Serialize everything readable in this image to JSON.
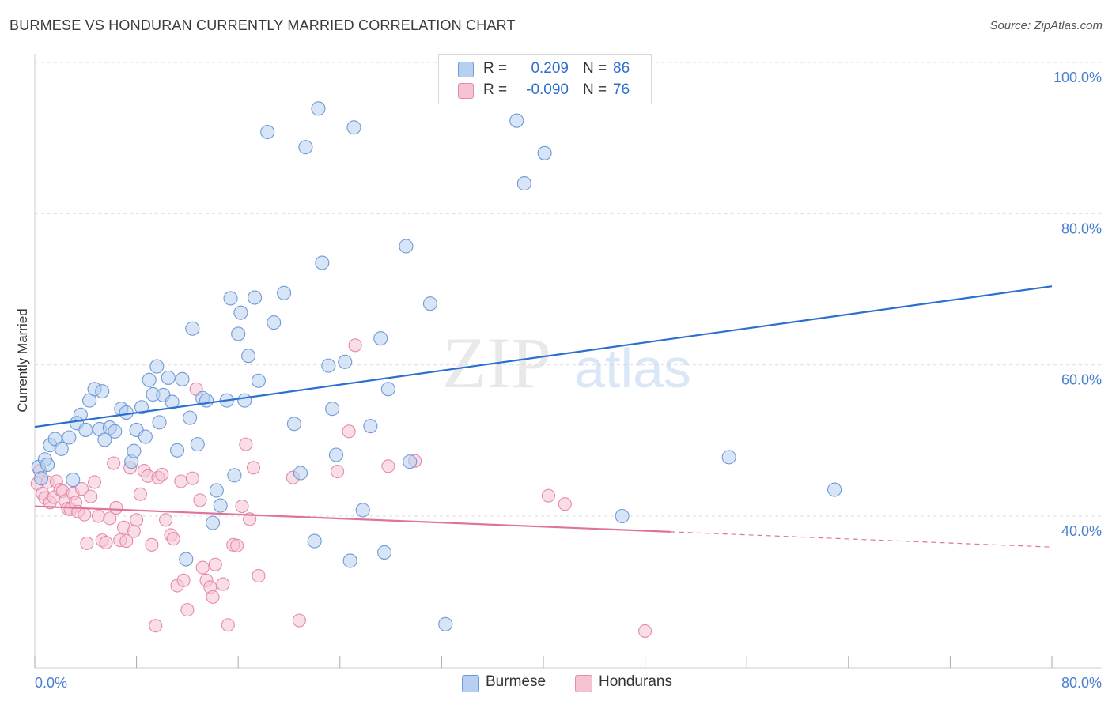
{
  "header": {
    "title": "BURMESE VS HONDURAN CURRENTLY MARRIED CORRELATION CHART",
    "source": "Source: ZipAtlas.com"
  },
  "legend_top": {
    "rows": [
      {
        "r_label": "R =",
        "r_value": "0.209",
        "n_label": "N =",
        "n_value": "86"
      },
      {
        "r_label": "R =",
        "r_value": "-0.090",
        "n_label": "N =",
        "n_value": "76"
      }
    ]
  },
  "legend_bottom": {
    "items": [
      "Burmese",
      "Hondurans"
    ]
  },
  "watermark": {
    "zip": "ZIP",
    "atlas": "atlas"
  },
  "colors": {
    "burmese_fill": "#b7cff0",
    "burmese_stroke": "#6f9ad8",
    "burmese_line": "#2b6fd1",
    "hondurans_fill": "#f6c3d3",
    "hondurans_stroke": "#e58aa8",
    "hondurans_line": "#e0739a",
    "tick_text": "#4a7fcf",
    "grid": "#dddddd"
  },
  "chart_data": {
    "type": "scatter",
    "title": "BURMESE VS HONDURAN CURRENTLY MARRIED CORRELATION CHART",
    "xlabel": "",
    "ylabel": "Currently Married",
    "xlim": [
      0,
      80
    ],
    "ylim": [
      22,
      104
    ],
    "x_tick_labels": [
      "0.0%",
      "80.0%"
    ],
    "y_ticks": [
      40,
      60,
      80,
      100
    ],
    "y_tick_labels": [
      "40.0%",
      "60.0%",
      "80.0%",
      "100.0%"
    ],
    "grid": true,
    "legend": "top-center",
    "series": [
      {
        "name": "Burmese",
        "R": 0.209,
        "N": 86,
        "trend": {
          "x": [
            0,
            80
          ],
          "y": [
            51.8,
            70.4
          ],
          "dashed_from_x": null
        },
        "points": [
          [
            0.3,
            46.5
          ],
          [
            0.5,
            45.0
          ],
          [
            0.8,
            47.5
          ],
          [
            1.0,
            46.8
          ],
          [
            1.2,
            49.4
          ],
          [
            1.6,
            50.2
          ],
          [
            2.1,
            48.9
          ],
          [
            2.7,
            50.4
          ],
          [
            3.0,
            44.8
          ],
          [
            3.6,
            53.4
          ],
          [
            3.3,
            52.3
          ],
          [
            4.0,
            51.4
          ],
          [
            4.3,
            55.3
          ],
          [
            4.7,
            56.8
          ],
          [
            5.1,
            51.5
          ],
          [
            5.3,
            56.5
          ],
          [
            5.5,
            50.1
          ],
          [
            5.9,
            51.7
          ],
          [
            6.3,
            51.2
          ],
          [
            6.8,
            54.2
          ],
          [
            7.2,
            53.7
          ],
          [
            7.6,
            47.2
          ],
          [
            7.8,
            48.6
          ],
          [
            8.0,
            51.4
          ],
          [
            8.4,
            54.4
          ],
          [
            8.7,
            50.5
          ],
          [
            9.0,
            58.0
          ],
          [
            9.3,
            56.1
          ],
          [
            9.6,
            59.8
          ],
          [
            9.8,
            52.4
          ],
          [
            10.1,
            56.0
          ],
          [
            10.5,
            58.3
          ],
          [
            10.8,
            55.1
          ],
          [
            11.2,
            48.7
          ],
          [
            11.6,
            58.1
          ],
          [
            11.9,
            34.3
          ],
          [
            12.2,
            53.0
          ],
          [
            12.4,
            64.8
          ],
          [
            12.8,
            49.5
          ],
          [
            13.2,
            55.6
          ],
          [
            13.5,
            55.3
          ],
          [
            14.0,
            39.1
          ],
          [
            14.3,
            43.4
          ],
          [
            14.6,
            41.4
          ],
          [
            15.1,
            55.3
          ],
          [
            15.4,
            68.8
          ],
          [
            15.7,
            45.4
          ],
          [
            16.0,
            64.1
          ],
          [
            16.2,
            66.9
          ],
          [
            16.5,
            55.3
          ],
          [
            16.8,
            61.2
          ],
          [
            17.3,
            68.9
          ],
          [
            17.6,
            57.9
          ],
          [
            18.3,
            90.8
          ],
          [
            18.8,
            65.6
          ],
          [
            19.6,
            69.5
          ],
          [
            20.4,
            52.2
          ],
          [
            20.9,
            45.7
          ],
          [
            21.3,
            88.8
          ],
          [
            22.0,
            36.7
          ],
          [
            22.6,
            73.5
          ],
          [
            22.3,
            93.9
          ],
          [
            23.1,
            59.9
          ],
          [
            23.4,
            54.2
          ],
          [
            23.7,
            48.1
          ],
          [
            24.4,
            60.4
          ],
          [
            24.8,
            34.1
          ],
          [
            25.1,
            91.4
          ],
          [
            25.8,
            40.8
          ],
          [
            26.4,
            51.9
          ],
          [
            27.2,
            63.5
          ],
          [
            27.5,
            35.2
          ],
          [
            27.8,
            56.8
          ],
          [
            29.2,
            75.7
          ],
          [
            29.5,
            47.2
          ],
          [
            31.1,
            68.1
          ],
          [
            32.3,
            25.7
          ],
          [
            37.9,
            92.3
          ],
          [
            38.5,
            84.0
          ],
          [
            40.1,
            88.0
          ],
          [
            46.2,
            40.0
          ],
          [
            54.6,
            47.8
          ],
          [
            62.9,
            43.5
          ]
        ]
      },
      {
        "name": "Hondurans",
        "R": -0.09,
        "N": 76,
        "trend": {
          "x": [
            0,
            80
          ],
          "y": [
            41.3,
            35.9
          ],
          "dashed_from_x": 50.0
        },
        "points": [
          [
            0.2,
            44.3
          ],
          [
            0.4,
            46.0
          ],
          [
            0.6,
            43.0
          ],
          [
            0.8,
            42.4
          ],
          [
            1.0,
            44.5
          ],
          [
            1.2,
            41.8
          ],
          [
            1.5,
            42.5
          ],
          [
            1.7,
            44.6
          ],
          [
            2.0,
            43.5
          ],
          [
            2.2,
            43.3
          ],
          [
            2.4,
            42.0
          ],
          [
            2.6,
            41.0
          ],
          [
            2.8,
            40.9
          ],
          [
            3.0,
            43.0
          ],
          [
            3.2,
            41.8
          ],
          [
            3.4,
            40.6
          ],
          [
            3.7,
            43.6
          ],
          [
            3.9,
            40.2
          ],
          [
            4.1,
            36.4
          ],
          [
            4.4,
            42.6
          ],
          [
            4.7,
            44.5
          ],
          [
            5.0,
            40.0
          ],
          [
            5.3,
            36.8
          ],
          [
            5.6,
            36.5
          ],
          [
            5.9,
            39.7
          ],
          [
            6.2,
            47.0
          ],
          [
            6.4,
            41.1
          ],
          [
            6.7,
            36.8
          ],
          [
            7.0,
            38.5
          ],
          [
            7.2,
            36.7
          ],
          [
            7.5,
            46.4
          ],
          [
            7.8,
            38.0
          ],
          [
            8.0,
            39.5
          ],
          [
            8.3,
            42.9
          ],
          [
            8.6,
            46.0
          ],
          [
            8.9,
            45.3
          ],
          [
            9.2,
            36.2
          ],
          [
            9.5,
            25.5
          ],
          [
            9.7,
            45.1
          ],
          [
            10.0,
            45.5
          ],
          [
            10.3,
            39.5
          ],
          [
            10.7,
            37.5
          ],
          [
            10.9,
            37.0
          ],
          [
            11.2,
            30.8
          ],
          [
            11.5,
            44.6
          ],
          [
            11.7,
            31.5
          ],
          [
            12.0,
            27.6
          ],
          [
            12.4,
            45.0
          ],
          [
            12.7,
            56.8
          ],
          [
            13.0,
            42.1
          ],
          [
            13.2,
            33.2
          ],
          [
            13.5,
            31.5
          ],
          [
            13.8,
            30.6
          ],
          [
            14.0,
            29.3
          ],
          [
            14.2,
            33.6
          ],
          [
            14.8,
            31.0
          ],
          [
            15.2,
            25.6
          ],
          [
            15.6,
            36.2
          ],
          [
            15.9,
            36.1
          ],
          [
            16.3,
            41.3
          ],
          [
            16.6,
            49.5
          ],
          [
            16.9,
            39.6
          ],
          [
            17.2,
            46.4
          ],
          [
            17.6,
            32.1
          ],
          [
            20.3,
            45.1
          ],
          [
            20.8,
            26.2
          ],
          [
            23.8,
            45.9
          ],
          [
            24.7,
            51.2
          ],
          [
            25.2,
            62.6
          ],
          [
            27.8,
            46.6
          ],
          [
            29.9,
            47.3
          ],
          [
            40.4,
            42.7
          ],
          [
            41.7,
            41.6
          ],
          [
            48.0,
            24.8
          ]
        ]
      }
    ]
  }
}
